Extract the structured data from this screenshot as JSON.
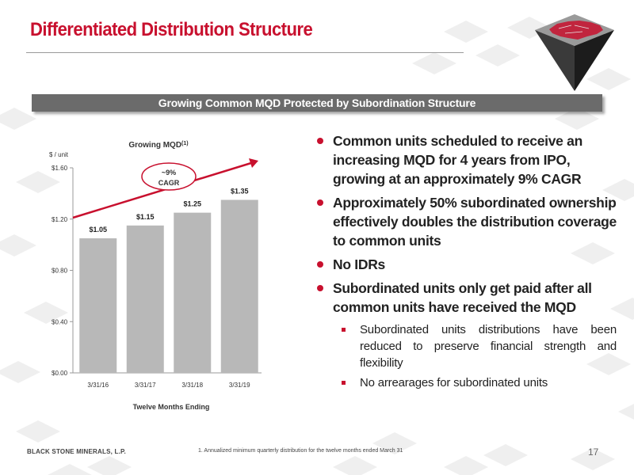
{
  "slide": {
    "title": "Differentiated Distribution Structure",
    "banner": "Growing Common MQD Protected by Subordination Structure",
    "company": "BLACK STONE MINERALS, L.P.",
    "footnote": "1.   Annualized minimum quarterly distribution for the twelve months ended March 31",
    "page_number": "17",
    "accent_color": "#c8102e"
  },
  "bullets": [
    {
      "text": "Common units scheduled to receive an increasing MQD for 4 years from IPO, growing at an approximately 9% CAGR",
      "sub": []
    },
    {
      "text": "Approximately 50% subordinated ownership effectively doubles the distribution coverage to common units",
      "sub": []
    },
    {
      "text": "No IDRs",
      "sub": []
    },
    {
      "text": "Subordinated units only get paid after all common units have received the MQD",
      "sub": [
        "Subordinated units distributions have been reduced to preserve financial strength and flexibility",
        "No arrearages for subordinated units"
      ]
    }
  ],
  "chart_data": {
    "type": "bar",
    "title": "Growing MQD",
    "title_sup": "(1)",
    "ylabel": "$ / unit",
    "xlabel": "Twelve Months Ending",
    "categories": [
      "3/31/16",
      "3/31/17",
      "3/31/18",
      "3/31/19"
    ],
    "values": [
      1.05,
      1.15,
      1.25,
      1.35
    ],
    "data_labels": [
      "$1.05",
      "$1.15",
      "$1.25",
      "$1.35"
    ],
    "yticks": [
      0.0,
      0.4,
      0.8,
      1.2,
      1.6
    ],
    "ytick_labels": [
      "$0.00",
      "$0.40",
      "$0.80",
      "$1.20",
      "$1.60"
    ],
    "ylim": [
      0,
      1.6
    ],
    "annotation": {
      "line1": "~9%",
      "line2": "CAGR"
    },
    "bar_color": "#b8b8b8",
    "arrow_color": "#c8102e",
    "grid": false
  }
}
